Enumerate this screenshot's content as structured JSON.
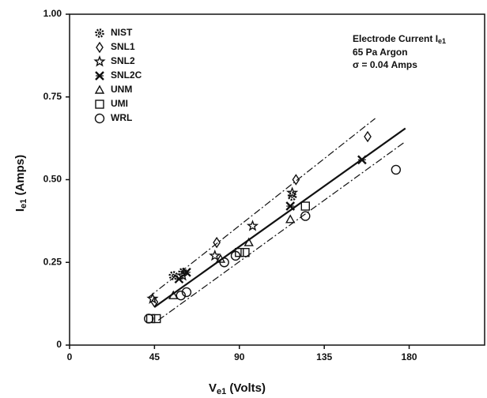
{
  "chart_data": {
    "type": "scatter",
    "xlabel": [
      "V",
      "e1",
      " (Volts)"
    ],
    "ylabel": [
      "I",
      "e1",
      " (Amps)"
    ],
    "annotations": [
      [
        "Electrode Current I",
        "e1"
      ],
      [
        "65 Pa Argon"
      ],
      [
        "σ = 0.04 Amps"
      ]
    ],
    "xlim": [
      0,
      220
    ],
    "ylim": [
      0,
      1
    ],
    "xticks": [
      0,
      45,
      90,
      135,
      180
    ],
    "yticks": [
      0,
      0.25,
      {
        "value": 0.5,
        "label": "0.50"
      },
      0.75,
      {
        "value": 1,
        "label": "1.00"
      }
    ],
    "series": [
      {
        "name": "NIST",
        "marker": "gear",
        "color": "#111",
        "x": [
          55,
          60,
          118
        ],
        "y": [
          0.21,
          0.22,
          0.45
        ]
      },
      {
        "name": "SNL1",
        "marker": "diamond",
        "color": "#111",
        "x": [
          45,
          78,
          120,
          158
        ],
        "y": [
          0.13,
          0.31,
          0.5,
          0.63
        ]
      },
      {
        "name": "SNL2",
        "marker": "star",
        "color": "#111",
        "x": [
          44,
          60,
          77,
          97,
          118
        ],
        "y": [
          0.14,
          0.21,
          0.27,
          0.36,
          0.46
        ]
      },
      {
        "name": "SNL2C",
        "marker": "asterisk",
        "color": "#111",
        "x": [
          58,
          62,
          117,
          155
        ],
        "y": [
          0.2,
          0.22,
          0.42,
          0.56
        ]
      },
      {
        "name": "UNM",
        "marker": "triangle",
        "color": "#111",
        "x": [
          55,
          80,
          95,
          117
        ],
        "y": [
          0.15,
          0.26,
          0.31,
          0.38
        ]
      },
      {
        "name": "UMI",
        "marker": "square",
        "color": "#111",
        "x": [
          43,
          46,
          90,
          93,
          125
        ],
        "y": [
          0.08,
          0.08,
          0.28,
          0.28,
          0.42
        ]
      },
      {
        "name": "WRL",
        "marker": "circle",
        "color": "#111",
        "x": [
          42,
          59,
          62,
          82,
          88,
          125,
          173
        ],
        "y": [
          0.08,
          0.15,
          0.16,
          0.25,
          0.27,
          0.39,
          0.53
        ]
      }
    ],
    "fit": {
      "x": [
        45,
        178
      ],
      "y": [
        0.115,
        0.655
      ]
    },
    "upper": {
      "x": [
        42,
        162
      ],
      "y": [
        0.145,
        0.685
      ]
    },
    "lower": {
      "x": [
        47,
        178
      ],
      "y": [
        0.075,
        0.615
      ]
    }
  }
}
